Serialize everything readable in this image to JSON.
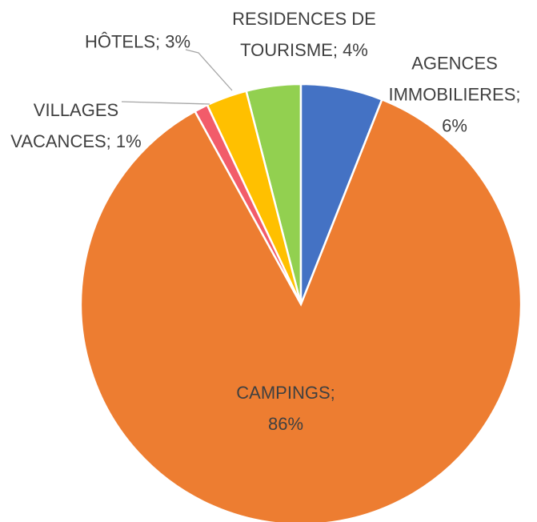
{
  "chart_data": {
    "type": "pie",
    "categories": [
      "AGENCES IMMOBILIERES",
      "CAMPINGS",
      "VILLAGES VACANCES",
      "HÔTELS",
      "RESIDENCES DE TOURISME"
    ],
    "values": [
      6,
      86,
      1,
      3,
      4
    ],
    "value_labels": [
      "AGENCES IMMOBILIERES; 6%",
      "CAMPINGS; 86%",
      "VILLAGES VACANCES; 1%",
      "HÔTELS; 3%",
      "RESIDENCES DE TOURISME; 4%"
    ],
    "colors": [
      "#4472c4",
      "#ed7d31",
      "#f25c6a",
      "#ffc000",
      "#92d050"
    ]
  }
}
